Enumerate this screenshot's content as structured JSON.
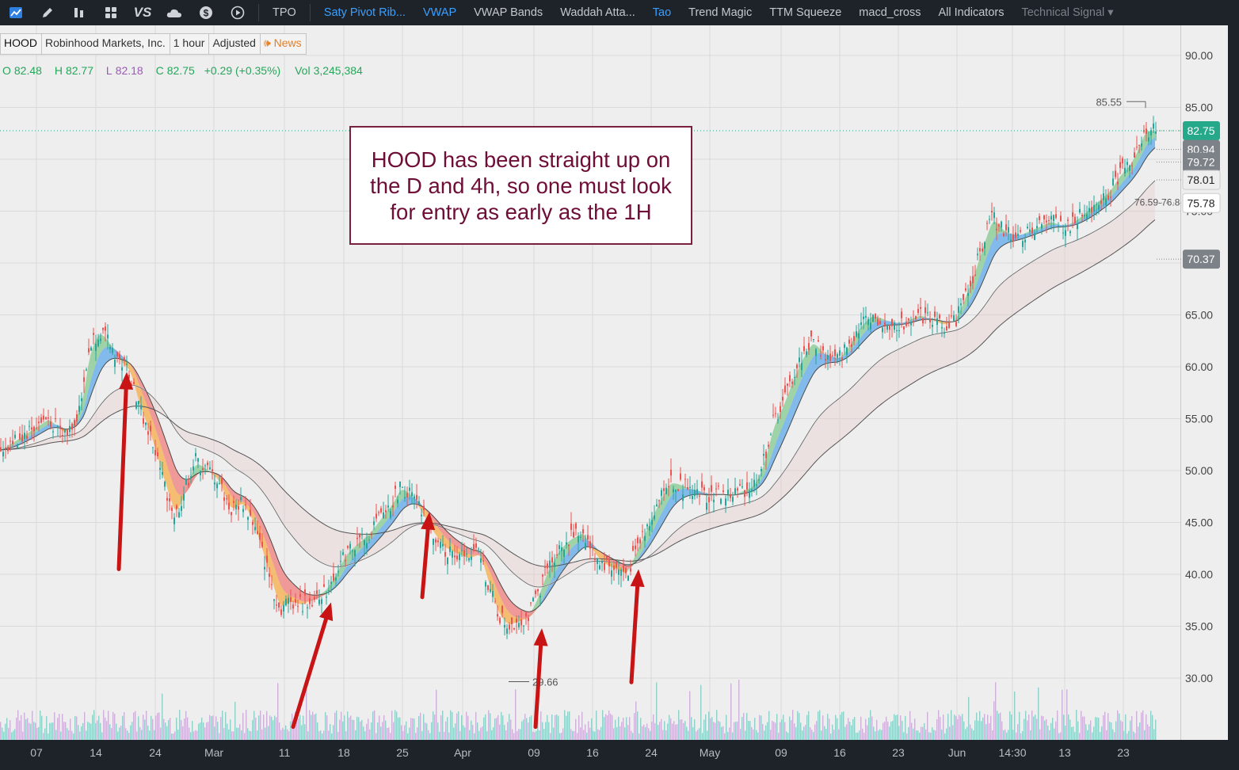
{
  "toolbar": {
    "icons": [
      "chart-icon",
      "pencil-icon",
      "bars-icon",
      "grid-icon",
      "vs-icon",
      "cloud-icon",
      "dollar-icon",
      "play-circle-icon"
    ],
    "items": [
      {
        "label": "TPO",
        "active": false
      },
      {
        "label": "Saty Pivot Rib...",
        "active": true
      },
      {
        "label": "VWAP",
        "active": true
      },
      {
        "label": "VWAP Bands",
        "active": false
      },
      {
        "label": "Waddah Atta...",
        "active": false
      },
      {
        "label": "Tao",
        "active": true
      },
      {
        "label": "Trend Magic",
        "active": false
      },
      {
        "label": "TTM Squeeze",
        "active": false
      },
      {
        "label": "macd_cross",
        "active": false
      },
      {
        "label": "All Indicators",
        "active": false
      }
    ],
    "technical_signal": "Technical Signal ▾",
    "vs_label": "VS"
  },
  "symbol": {
    "ticker": "HOOD",
    "name": "Robinhood Markets, Inc.",
    "timeframe": "1 hour",
    "adjustment": "Adjusted",
    "news": "News"
  },
  "ohlc": {
    "o_label": "O",
    "o": "82.48",
    "h_label": "H",
    "h": "82.77",
    "l_label": "L",
    "l": "82.18",
    "c_label": "C",
    "c": "82.75",
    "change": "+0.29 (+0.35%)",
    "vol_label": "Vol",
    "vol": "3,245,384"
  },
  "annotation": {
    "lines": [
      "HOOD has been straight up on",
      "the D and 4h, so one must look",
      "for entry as early as the 1H"
    ]
  },
  "colors": {
    "up": "#26a69a",
    "down": "#ef5350",
    "volume_up": "#8fd1c9",
    "volume_down": "#cfb0d9",
    "ribbon_green": "#8fce9a",
    "ribbon_blue": "#6fb1ea",
    "ribbon_orange": "#f5b45c",
    "ribbon_red": "#f08a8a",
    "arrow": "#c81414",
    "last_price": "#26a98b"
  },
  "chart_data": {
    "type": "candlestick",
    "title": "",
    "ylim": [
      27,
      92
    ],
    "y_ticks": [
      "90.00",
      "85.00",
      "80.00",
      "75.00",
      "70.00",
      "65.00",
      "60.00",
      "55.00",
      "50.00",
      "45.00",
      "40.00",
      "35.00",
      "30.00"
    ],
    "x_ticks": [
      "07",
      "14",
      "24",
      "Mar",
      "11",
      "18",
      "25",
      "Apr",
      "09",
      "16",
      "24",
      "May",
      "09",
      "16",
      "23",
      "Jun",
      "14:30",
      "13",
      "23"
    ],
    "price_labels": [
      {
        "text": "82.75",
        "y": 82.75,
        "bg": "#26a98b",
        "fg": "#ffffff"
      },
      {
        "text": "80.94",
        "y": 80.94,
        "bg": "#7d8288",
        "fg": "#ffffff"
      },
      {
        "text": "79.72",
        "y": 79.72,
        "bg": "#7d8288",
        "fg": "#ffffff"
      },
      {
        "text": "78.01",
        "y": 78.01,
        "bg": "#eeeeee",
        "fg": "#222222"
      },
      {
        "text": "75.78",
        "y": 75.78,
        "bg": "#ffffff",
        "fg": "#222222"
      },
      {
        "text": "70.37",
        "y": 70.37,
        "bg": "#7d8288",
        "fg": "#ffffff"
      }
    ],
    "high_marker": {
      "text": "85.55",
      "value": 85.55
    },
    "low_marker": {
      "text": "29.66",
      "value": 29.66
    },
    "range_label": "76.59-76.8",
    "close_path": [
      [
        0,
        52
      ],
      [
        20,
        53
      ],
      [
        40,
        54
      ],
      [
        60,
        55
      ],
      [
        80,
        53.5
      ],
      [
        95,
        55
      ],
      [
        105,
        58
      ],
      [
        112,
        62
      ],
      [
        125,
        63.5
      ],
      [
        138,
        62
      ],
      [
        150,
        60.5
      ],
      [
        163,
        59.5
      ],
      [
        175,
        56
      ],
      [
        190,
        53
      ],
      [
        205,
        49
      ],
      [
        220,
        45.5
      ],
      [
        232,
        48
      ],
      [
        245,
        51
      ],
      [
        260,
        50
      ],
      [
        275,
        49
      ],
      [
        290,
        46
      ],
      [
        305,
        47
      ],
      [
        318,
        45
      ],
      [
        330,
        42
      ],
      [
        342,
        39
      ],
      [
        352,
        36.5
      ],
      [
        365,
        37.5
      ],
      [
        380,
        37
      ],
      [
        395,
        37.8
      ],
      [
        410,
        38.5
      ],
      [
        422,
        40
      ],
      [
        435,
        42
      ],
      [
        450,
        43
      ],
      [
        465,
        44
      ],
      [
        480,
        45.5
      ],
      [
        495,
        47
      ],
      [
        505,
        48.5
      ],
      [
        518,
        47.5
      ],
      [
        530,
        46
      ],
      [
        545,
        44
      ],
      [
        560,
        42.5
      ],
      [
        575,
        42
      ],
      [
        590,
        41.5
      ],
      [
        605,
        42
      ],
      [
        615,
        39
      ],
      [
        628,
        36
      ],
      [
        640,
        35
      ],
      [
        652,
        35.5
      ],
      [
        665,
        35.8
      ],
      [
        678,
        38
      ],
      [
        690,
        40.5
      ],
      [
        705,
        42.5
      ],
      [
        720,
        43.5
      ],
      [
        735,
        44
      ],
      [
        748,
        42
      ],
      [
        760,
        41
      ],
      [
        775,
        40.5
      ],
      [
        790,
        40
      ],
      [
        800,
        42
      ],
      [
        815,
        44.5
      ],
      [
        830,
        47
      ],
      [
        845,
        49
      ],
      [
        860,
        48.5
      ],
      [
        875,
        48
      ],
      [
        890,
        47.5
      ],
      [
        905,
        47.8
      ],
      [
        920,
        47.5
      ],
      [
        935,
        48
      ],
      [
        950,
        48.5
      ],
      [
        962,
        50.5
      ],
      [
        975,
        54.5
      ],
      [
        988,
        56.5
      ],
      [
        1000,
        59
      ],
      [
        1012,
        61
      ],
      [
        1025,
        62.5
      ],
      [
        1040,
        61
      ],
      [
        1055,
        60.5
      ],
      [
        1070,
        62
      ],
      [
        1085,
        64
      ],
      [
        1100,
        65
      ],
      [
        1115,
        64.5
      ],
      [
        1130,
        64
      ],
      [
        1145,
        64.5
      ],
      [
        1160,
        65
      ],
      [
        1175,
        64.5
      ],
      [
        1190,
        64
      ],
      [
        1205,
        64.5
      ],
      [
        1215,
        66.5
      ],
      [
        1228,
        69
      ],
      [
        1240,
        72
      ],
      [
        1252,
        74.5
      ],
      [
        1265,
        73
      ],
      [
        1280,
        72.5
      ],
      [
        1295,
        73
      ],
      [
        1310,
        73.5
      ],
      [
        1325,
        74
      ],
      [
        1340,
        73.5
      ],
      [
        1355,
        74
      ],
      [
        1370,
        75
      ],
      [
        1385,
        76
      ],
      [
        1400,
        77
      ],
      [
        1412,
        78.5
      ],
      [
        1425,
        79.5
      ],
      [
        1435,
        81
      ],
      [
        1445,
        83
      ],
      [
        1455,
        82.7
      ],
      [
        1460,
        82.75
      ]
    ],
    "arrows": [
      {
        "from": [
          150,
          40.5
        ],
        "to": [
          160,
          59.5
        ]
      },
      {
        "from": [
          370,
          25.3
        ],
        "to": [
          418,
          37.3
        ]
      },
      {
        "from": [
          533,
          37.8
        ],
        "to": [
          542,
          46
        ]
      },
      {
        "from": [
          676,
          25.3
        ],
        "to": [
          684,
          34.8
        ]
      },
      {
        "from": [
          797,
          29.6
        ],
        "to": [
          806,
          40.5
        ]
      }
    ]
  }
}
